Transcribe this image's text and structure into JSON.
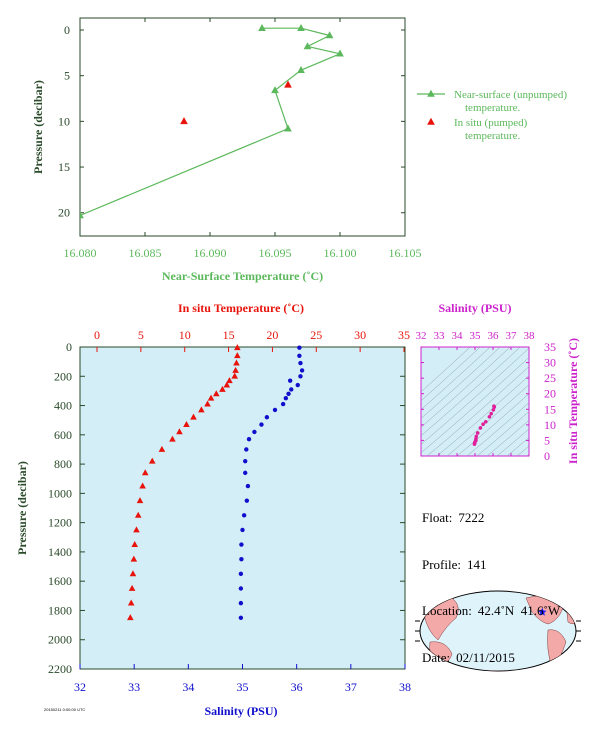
{
  "colors": {
    "green": "#5cb85c",
    "red": "#e8140c",
    "blue": "#1010cc",
    "magenta": "#cc22cc",
    "panel_bg": "#d4eef8",
    "axis_dark": "#2a4a2a"
  },
  "chart_data": [
    {
      "type": "line",
      "xlabel": "Near-Surface Temperature (˚C)",
      "ylabel": "Pressure (decibar)",
      "xlim": [
        16.08,
        16.105
      ],
      "ylim": [
        0,
        22
      ],
      "y_inverted": true,
      "x_ticks": [
        "16.080",
        "16.085",
        "16.090",
        "16.095",
        "16.100",
        "16.105"
      ],
      "y_ticks": [
        "0",
        "5",
        "10",
        "15",
        "20"
      ],
      "series": [
        {
          "name": "Near-surface (unpumped) temperature.",
          "marker": "triangle",
          "line": true,
          "x": [
            16.094,
            16.097,
            16.0992,
            16.0975,
            16.1,
            16.097,
            16.095,
            16.096,
            16.08
          ],
          "y": [
            -0.2,
            -0.2,
            0.6,
            1.8,
            2.6,
            4.4,
            6.6,
            10.8,
            20.3
          ]
        },
        {
          "name": "In situ (pumped) temperature.",
          "marker": "triangle",
          "line": false,
          "x": [
            16.088,
            16.096
          ],
          "y": [
            10.0,
            6.0
          ]
        }
      ],
      "legend": "right"
    },
    {
      "type": "scatter",
      "ylabel": "Pressure (decibar)",
      "ylim": [
        0,
        2200
      ],
      "y_inverted": true,
      "y_ticks": [
        "0",
        "200",
        "400",
        "600",
        "800",
        "1000",
        "1200",
        "1400",
        "1600",
        "1800",
        "2000",
        "2200"
      ],
      "top_axis": {
        "label": "In situ Temperature (˚C)",
        "lim": [
          0,
          35
        ],
        "ticks": [
          "0",
          "5",
          "10",
          "15",
          "20",
          "25",
          "30",
          "35"
        ]
      },
      "bottom_axis": {
        "label": "Salinity (PSU)",
        "lim": [
          32,
          38
        ],
        "ticks": [
          "32",
          "33",
          "34",
          "35",
          "36",
          "37",
          "38"
        ]
      },
      "series": [
        {
          "axis": "top",
          "marker": "triangle",
          "p": [
            5,
            60,
            110,
            160,
            200,
            230,
            260,
            290,
            320,
            350,
            390,
            430,
            480,
            530,
            580,
            630,
            700,
            780,
            860,
            950,
            1050,
            1150,
            1250,
            1350,
            1450,
            1550,
            1650,
            1750,
            1850
          ],
          "v": [
            16.0,
            16.0,
            15.9,
            15.8,
            15.7,
            15.1,
            14.8,
            14.3,
            13.6,
            13.0,
            12.6,
            11.9,
            11.0,
            10.2,
            9.4,
            8.6,
            7.4,
            6.3,
            5.5,
            5.2,
            4.9,
            4.7,
            4.5,
            4.3,
            4.2,
            4.1,
            4.0,
            3.9,
            3.8
          ]
        },
        {
          "axis": "bottom",
          "marker": "dot",
          "p": [
            5,
            60,
            110,
            160,
            200,
            230,
            260,
            290,
            320,
            350,
            390,
            430,
            480,
            530,
            580,
            630,
            700,
            780,
            860,
            950,
            1050,
            1150,
            1250,
            1350,
            1450,
            1550,
            1650,
            1750,
            1850
          ],
          "v": [
            36.05,
            36.05,
            36.07,
            36.1,
            36.07,
            35.88,
            36.02,
            35.9,
            35.85,
            35.8,
            35.75,
            35.6,
            35.45,
            35.35,
            35.22,
            35.12,
            35.07,
            35.05,
            35.05,
            35.1,
            35.08,
            35.03,
            35.0,
            34.98,
            34.98,
            34.97,
            34.97,
            34.97,
            34.97
          ]
        }
      ]
    },
    {
      "type": "scatter",
      "xlabel": "Salinity (PSU)",
      "ylabel": "In situ Temperature (˚C)",
      "xlim": [
        32,
        38
      ],
      "ylim": [
        0,
        35
      ],
      "x_ticks": [
        "32",
        "33",
        "34",
        "35",
        "36",
        "37",
        "38"
      ],
      "y_ticks": [
        "0",
        "5",
        "10",
        "15",
        "20",
        "25",
        "30",
        "35"
      ],
      "series": [
        {
          "marker": "dot",
          "x": [
            36.05,
            36.07,
            36.02,
            35.9,
            35.8,
            35.6,
            35.45,
            35.3,
            35.15,
            35.07,
            35.05,
            35.05,
            35.0,
            34.98,
            34.97
          ],
          "y": [
            16.0,
            15.7,
            14.8,
            13.6,
            12.6,
            11.0,
            10.2,
            9.0,
            7.4,
            6.3,
            5.5,
            5.0,
            4.5,
            4.1,
            3.8
          ]
        }
      ]
    }
  ],
  "info": {
    "float_label": "Float:",
    "float_value": "7222",
    "profile_label": "Profile:",
    "profile_value": "141",
    "location_label": "Location:",
    "location_value": "42.4˚N  41.6˚W",
    "date_label": "Date:",
    "date_value": "02/11/2015"
  },
  "map": {
    "marker_lon": -41.6,
    "marker_lat": 42.4,
    "marker_color": "#1a1aff"
  },
  "footnote": "20150211 0:00:00 UTC"
}
